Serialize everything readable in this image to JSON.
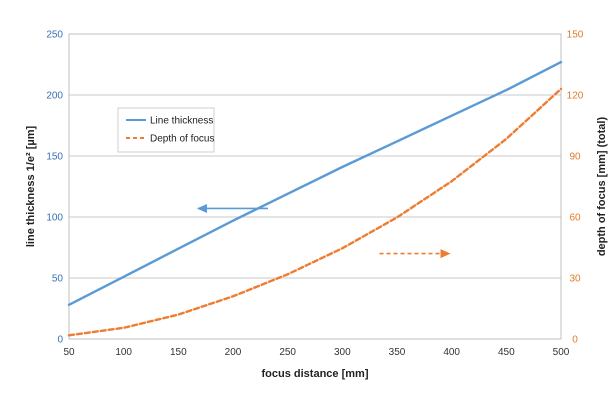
{
  "chart_data": {
    "type": "line",
    "title": "",
    "xlabel": "focus distance [mm]",
    "ylabel_left": "line thickness  1/e² [µm]",
    "ylabel_right": "depth of focus [mm] (total)",
    "xlim": [
      50,
      500
    ],
    "ylim_left": [
      0,
      250
    ],
    "ylim_right": [
      0,
      150
    ],
    "x_ticks": [
      "50",
      "100",
      "150",
      "200",
      "250",
      "300",
      "350",
      "400",
      "450",
      "500"
    ],
    "y_left_ticks": [
      "0",
      "50",
      "100",
      "150",
      "200",
      "250"
    ],
    "y_right_ticks": [
      "0",
      "30",
      "60",
      "90",
      "120",
      "150"
    ],
    "grid": true,
    "legend_position": "upper-left",
    "series": [
      {
        "name": "Line thickness",
        "axis": "left",
        "color": "#5b9bd5",
        "style": "solid",
        "x": [
          50,
          100,
          150,
          200,
          250,
          300,
          350,
          400,
          450,
          500
        ],
        "y": [
          28,
          51,
          74,
          97,
          119,
          141,
          162,
          183,
          204,
          227
        ]
      },
      {
        "name": "Depth of focus",
        "axis": "right",
        "color": "#ed7d31",
        "style": "dashed",
        "x": [
          50,
          100,
          150,
          200,
          250,
          300,
          350,
          400,
          450,
          500
        ],
        "y": [
          1.8,
          5.5,
          12,
          21,
          31.8,
          44.6,
          59.8,
          77.6,
          98.4,
          123
        ]
      }
    ],
    "annotations": [
      {
        "type": "arrow",
        "direction": "left",
        "color": "#5b9bd5",
        "x_from": 232,
        "x_to": 168,
        "axis": "left",
        "y": 107
      },
      {
        "type": "arrow",
        "direction": "right",
        "color": "#ed7d31",
        "x_from": 334,
        "x_to": 398,
        "axis": "right",
        "y": 42
      }
    ]
  }
}
